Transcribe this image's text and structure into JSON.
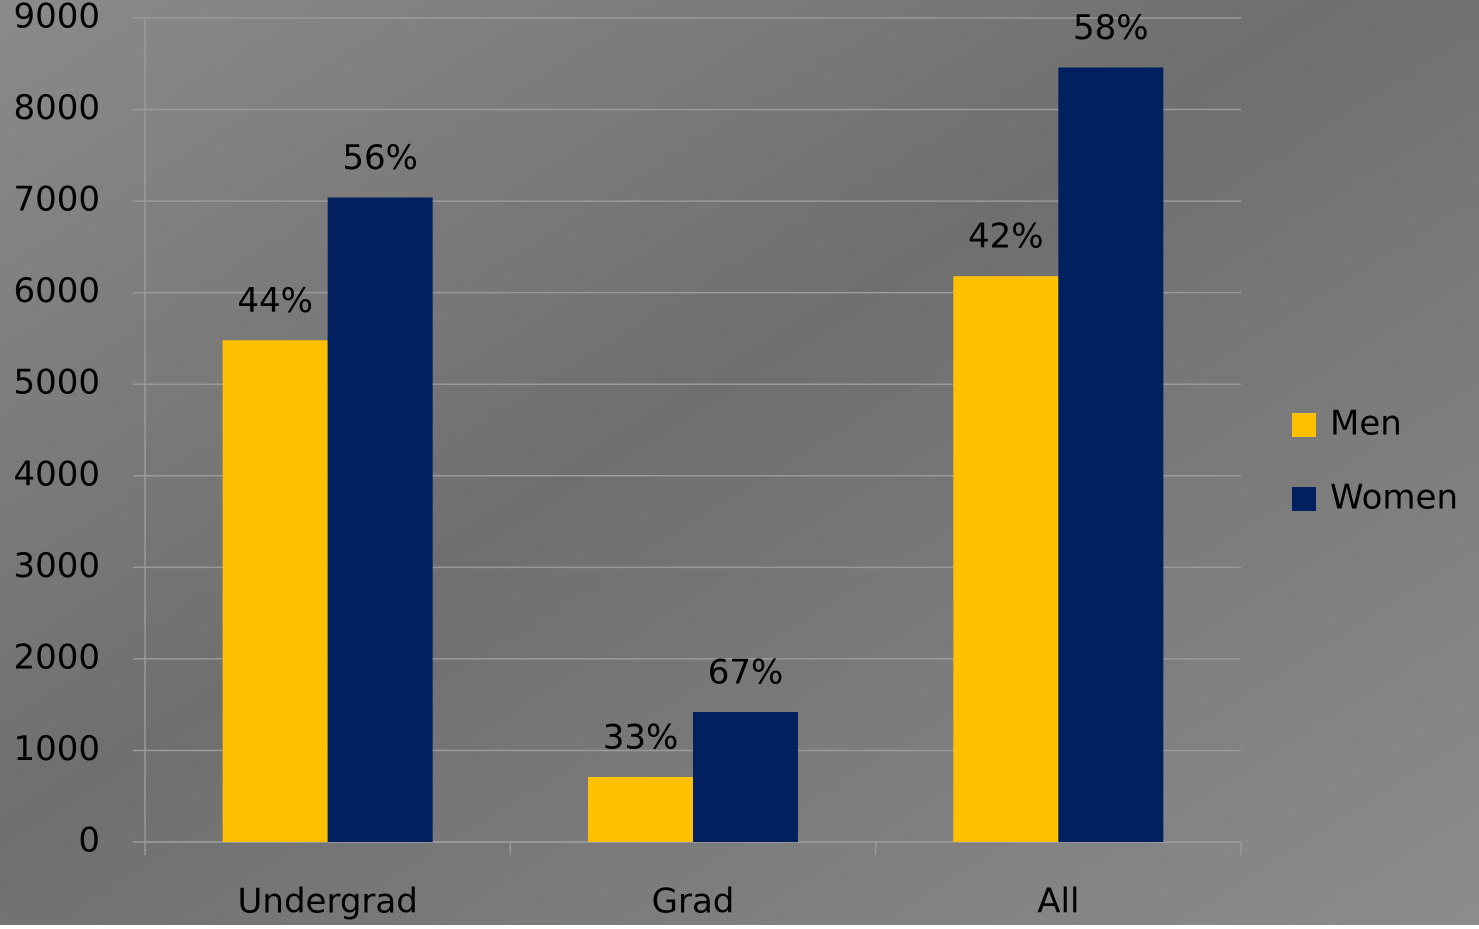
{
  "chart_data": {
    "type": "bar",
    "categories": [
      "Undergrad",
      "Grad",
      "All"
    ],
    "series": [
      {
        "name": "Men",
        "color": "#ffc000",
        "values": [
          5480,
          710,
          6180
        ],
        "labels": [
          "44%",
          "33%",
          "42%"
        ]
      },
      {
        "name": "Women",
        "color": "#002060",
        "values": [
          7040,
          1420,
          8460
        ],
        "labels": [
          "56%",
          "67%",
          "58%"
        ]
      }
    ],
    "ylim": [
      0,
      9000
    ],
    "yticks": [
      0,
      1000,
      2000,
      3000,
      4000,
      5000,
      6000,
      7000,
      8000,
      9000
    ],
    "grid": true,
    "legend": "right"
  }
}
